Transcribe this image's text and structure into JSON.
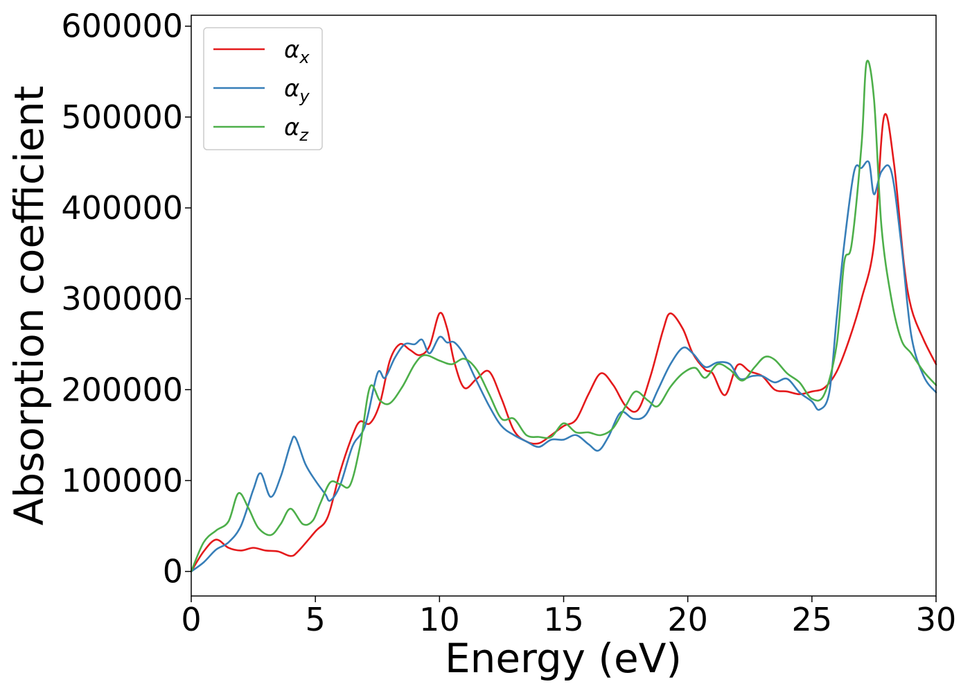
{
  "chart_data": {
    "type": "line",
    "title": "",
    "xlabel": "Energy (eV)",
    "ylabel": "Absorption coefficient",
    "xlim": [
      0,
      30
    ],
    "ylim": [
      -27000,
      612000
    ],
    "xticks": [
      0,
      5,
      10,
      15,
      20,
      25,
      30
    ],
    "yticks": [
      0,
      100000,
      200000,
      300000,
      400000,
      500000,
      600000
    ],
    "grid": false,
    "legend_position": "upper-left",
    "series": [
      {
        "name": "α",
        "subscript": "x",
        "color": "#e41a1c",
        "x": [
          0,
          0.5,
          1,
          1.5,
          2,
          2.5,
          3,
          3.5,
          4,
          4.3,
          5,
          5.5,
          6,
          6.5,
          6.8,
          7.2,
          7.6,
          8,
          8.4,
          8.8,
          9.2,
          9.6,
          10,
          10.3,
          10.6,
          11,
          11.5,
          12,
          12.5,
          13,
          13.5,
          14,
          14.5,
          15,
          15.5,
          16,
          16.5,
          17,
          17.5,
          18,
          18.5,
          19,
          19.3,
          19.8,
          20.2,
          20.7,
          21,
          21.5,
          22,
          22.5,
          23,
          23.5,
          24,
          24.5,
          25,
          25.5,
          26,
          26.5,
          27,
          27.5,
          27.9,
          28.3,
          28.7,
          29,
          29.5,
          30
        ],
        "y": [
          0,
          22000,
          35000,
          26000,
          23000,
          26000,
          23000,
          22000,
          17000,
          22000,
          44000,
          60000,
          110000,
          150000,
          165000,
          163000,
          185000,
          232000,
          250000,
          244000,
          238000,
          248000,
          284000,
          268000,
          230000,
          202000,
          212000,
          220000,
          190000,
          155000,
          143000,
          141000,
          150000,
          160000,
          167000,
          195000,
          218000,
          205000,
          182000,
          178000,
          215000,
          265000,
          284000,
          267000,
          240000,
          222000,
          218000,
          194000,
          227000,
          220000,
          215000,
          200000,
          198000,
          195000,
          198000,
          202000,
          220000,
          255000,
          300000,
          360000,
          500000,
          450000,
          340000,
          290000,
          255000,
          228000
        ]
      },
      {
        "name": "α",
        "subscript": "y",
        "color": "#377eb8",
        "x": [
          0,
          0.5,
          1,
          1.5,
          2,
          2.5,
          2.8,
          3.2,
          3.6,
          4,
          4.2,
          4.6,
          5,
          5.4,
          5.6,
          6,
          6.5,
          7,
          7.5,
          7.8,
          8.2,
          8.6,
          9,
          9.3,
          9.6,
          10,
          10.3,
          10.6,
          11,
          11.4,
          12,
          12.5,
          13,
          13.5,
          14,
          14.5,
          15,
          15.5,
          16,
          16.4,
          16.8,
          17.3,
          17.8,
          18.3,
          18.8,
          19.3,
          19.8,
          20.2,
          20.7,
          21.2,
          21.7,
          22.1,
          22.6,
          23,
          23.5,
          24,
          24.5,
          25,
          25.3,
          25.7,
          26,
          26.3,
          26.7,
          27,
          27.3,
          27.5,
          27.8,
          28.2,
          28.6,
          29,
          29.5,
          30
        ],
        "y": [
          0,
          10000,
          24000,
          32000,
          50000,
          90000,
          108000,
          82000,
          104000,
          140000,
          147000,
          118000,
          100000,
          85000,
          78000,
          95000,
          138000,
          160000,
          218000,
          213000,
          235000,
          250000,
          250000,
          255000,
          240000,
          258000,
          252000,
          252000,
          238000,
          215000,
          182000,
          160000,
          150000,
          143000,
          137000,
          145000,
          145000,
          150000,
          140000,
          133000,
          148000,
          175000,
          168000,
          172000,
          200000,
          228000,
          246000,
          240000,
          225000,
          230000,
          228000,
          212000,
          215000,
          215000,
          208000,
          212000,
          197000,
          187000,
          178000,
          197000,
          280000,
          360000,
          440000,
          444000,
          450000,
          415000,
          440000,
          440000,
          360000,
          260000,
          215000,
          197000
        ]
      },
      {
        "name": "α",
        "subscript": "z",
        "color": "#4daf4a",
        "x": [
          0,
          0.5,
          1,
          1.5,
          1.9,
          2.3,
          2.7,
          3.2,
          3.6,
          4,
          4.5,
          4.9,
          5.2,
          5.6,
          6,
          6.4,
          6.8,
          7.2,
          7.6,
          8,
          8.5,
          9,
          9.4,
          10,
          10.5,
          11,
          11.5,
          12,
          12.5,
          13,
          13.5,
          14,
          14.5,
          15,
          15.5,
          16,
          16.5,
          17,
          17.5,
          17.9,
          18.4,
          18.8,
          19.3,
          19.8,
          20.3,
          20.7,
          21.2,
          21.7,
          22.2,
          22.7,
          23.1,
          23.5,
          24,
          24.5,
          25,
          25.5,
          26,
          26.3,
          26.6,
          27,
          27.2,
          27.5,
          27.8,
          28.2,
          28.6,
          29,
          29.5,
          30
        ],
        "y": [
          0,
          32000,
          45000,
          55000,
          86000,
          70000,
          48000,
          40000,
          52000,
          69000,
          52000,
          56000,
          75000,
          98000,
          96000,
          95000,
          138000,
          203000,
          188000,
          185000,
          203000,
          228000,
          238000,
          232000,
          228000,
          234000,
          222000,
          195000,
          168000,
          168000,
          150000,
          148000,
          148000,
          163000,
          153000,
          153000,
          150000,
          158000,
          182000,
          198000,
          188000,
          182000,
          203000,
          218000,
          224000,
          213000,
          228000,
          222000,
          210000,
          225000,
          236000,
          233000,
          218000,
          208000,
          190000,
          195000,
          250000,
          340000,
          360000,
          470000,
          560000,
          520000,
          380000,
          300000,
          255000,
          240000,
          220000,
          205000
        ]
      }
    ]
  }
}
